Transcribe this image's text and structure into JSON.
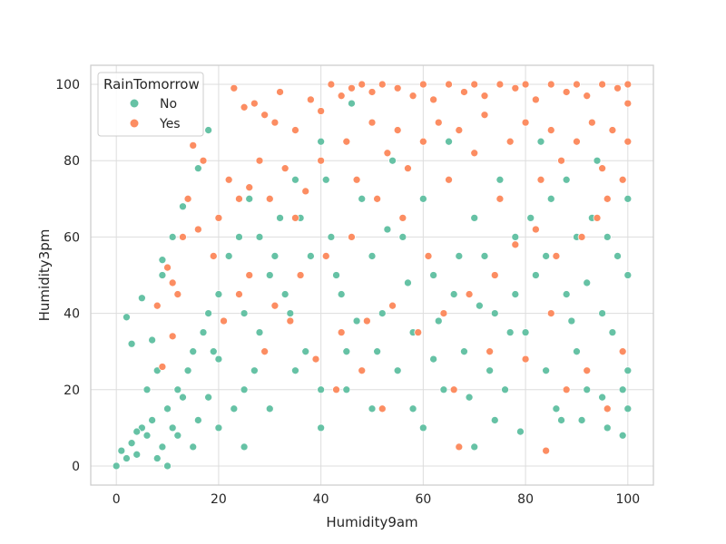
{
  "chart_data": {
    "type": "scatter",
    "xlabel": "Humidity9am",
    "ylabel": "Humidity3pm",
    "xlim": [
      -5,
      105
    ],
    "ylim": [
      -5,
      105
    ],
    "x_ticks": [
      0,
      20,
      40,
      60,
      80,
      100
    ],
    "y_ticks": [
      0,
      20,
      40,
      60,
      80,
      100
    ],
    "grid": true,
    "legend": {
      "title": "RainTomorrow",
      "placement": "top-left",
      "entries": [
        {
          "label": "No",
          "color": "#66c2a5"
        },
        {
          "label": "Yes",
          "color": "#fc8d62"
        }
      ]
    },
    "series": [
      {
        "name": "No",
        "color": "#66c2a5",
        "points": [
          [
            0,
            0
          ],
          [
            1,
            4
          ],
          [
            2,
            2
          ],
          [
            3,
            6
          ],
          [
            4,
            3
          ],
          [
            5,
            10
          ],
          [
            6,
            8
          ],
          [
            7,
            12
          ],
          [
            8,
            2
          ],
          [
            9,
            5
          ],
          [
            10,
            15
          ],
          [
            10,
            0
          ],
          [
            12,
            20
          ],
          [
            12,
            8
          ],
          [
            14,
            25
          ],
          [
            15,
            5
          ],
          [
            15,
            30
          ],
          [
            16,
            12
          ],
          [
            17,
            35
          ],
          [
            18,
            40
          ],
          [
            18,
            18
          ],
          [
            20,
            45
          ],
          [
            20,
            10
          ],
          [
            20,
            28
          ],
          [
            22,
            55
          ],
          [
            24,
            60
          ],
          [
            25,
            20
          ],
          [
            25,
            5
          ],
          [
            26,
            70
          ],
          [
            28,
            35
          ],
          [
            30,
            50
          ],
          [
            30,
            15
          ],
          [
            32,
            65
          ],
          [
            34,
            40
          ],
          [
            35,
            25
          ],
          [
            35,
            75
          ],
          [
            38,
            55
          ],
          [
            40,
            85
          ],
          [
            40,
            20
          ],
          [
            40,
            10
          ],
          [
            42,
            60
          ],
          [
            44,
            45
          ],
          [
            45,
            30
          ],
          [
            46,
            95
          ],
          [
            48,
            70
          ],
          [
            50,
            55
          ],
          [
            50,
            15
          ],
          [
            52,
            40
          ],
          [
            54,
            80
          ],
          [
            55,
            25
          ],
          [
            56,
            60
          ],
          [
            58,
            35
          ],
          [
            60,
            70
          ],
          [
            60,
            10
          ],
          [
            62,
            50
          ],
          [
            64,
            20
          ],
          [
            65,
            85
          ],
          [
            66,
            45
          ],
          [
            68,
            30
          ],
          [
            70,
            65
          ],
          [
            70,
            5
          ],
          [
            72,
            55
          ],
          [
            74,
            40
          ],
          [
            75,
            75
          ],
          [
            76,
            20
          ],
          [
            78,
            60
          ],
          [
            80,
            35
          ],
          [
            80,
            90
          ],
          [
            82,
            50
          ],
          [
            84,
            25
          ],
          [
            85,
            70
          ],
          [
            86,
            15
          ],
          [
            88,
            45
          ],
          [
            90,
            60
          ],
          [
            90,
            30
          ],
          [
            92,
            20
          ],
          [
            94,
            80
          ],
          [
            95,
            40
          ],
          [
            96,
            10
          ],
          [
            98,
            55
          ],
          [
            100,
            25
          ],
          [
            100,
            50
          ],
          [
            100,
            70
          ],
          [
            100,
            15
          ],
          [
            99,
            8
          ],
          [
            97,
            35
          ],
          [
            93,
            65
          ],
          [
            88,
            75
          ],
          [
            83,
            85
          ],
          [
            78,
            45
          ],
          [
            73,
            25
          ],
          [
            67,
            55
          ],
          [
            63,
            38
          ],
          [
            57,
            48
          ],
          [
            53,
            62
          ],
          [
            47,
            38
          ],
          [
            43,
            50
          ],
          [
            37,
            30
          ],
          [
            33,
            45
          ],
          [
            27,
            25
          ],
          [
            23,
            15
          ],
          [
            19,
            30
          ],
          [
            13,
            18
          ],
          [
            11,
            10
          ],
          [
            8,
            25
          ],
          [
            6,
            20
          ],
          [
            4,
            9
          ],
          [
            3,
            32
          ],
          [
            2,
            39
          ],
          [
            5,
            44
          ],
          [
            9,
            50
          ],
          [
            11,
            60
          ],
          [
            13,
            68
          ],
          [
            16,
            78
          ],
          [
            18,
            88
          ],
          [
            9,
            54
          ],
          [
            7,
            33
          ],
          [
            25,
            40
          ],
          [
            28,
            60
          ],
          [
            31,
            55
          ],
          [
            36,
            65
          ],
          [
            41,
            75
          ],
          [
            45,
            20
          ],
          [
            51,
            30
          ],
          [
            58,
            15
          ],
          [
            62,
            28
          ],
          [
            69,
            18
          ],
          [
            74,
            12
          ],
          [
            79,
            9
          ],
          [
            87,
            12
          ],
          [
            91,
            12
          ],
          [
            95,
            18
          ],
          [
            99,
            20
          ],
          [
            96,
            60
          ],
          [
            92,
            48
          ],
          [
            89,
            38
          ],
          [
            84,
            55
          ],
          [
            81,
            65
          ],
          [
            77,
            35
          ],
          [
            71,
            42
          ]
        ]
      },
      {
        "name": "Yes",
        "color": "#fc8d62",
        "points": [
          [
            23,
            99
          ],
          [
            25,
            94
          ],
          [
            27,
            95
          ],
          [
            29,
            92
          ],
          [
            32,
            98
          ],
          [
            31,
            90
          ],
          [
            35,
            88
          ],
          [
            38,
            96
          ],
          [
            40,
            93
          ],
          [
            42,
            100
          ],
          [
            44,
            97
          ],
          [
            46,
            99
          ],
          [
            48,
            100
          ],
          [
            50,
            98
          ],
          [
            52,
            100
          ],
          [
            55,
            99
          ],
          [
            58,
            97
          ],
          [
            60,
            100
          ],
          [
            62,
            96
          ],
          [
            65,
            100
          ],
          [
            68,
            98
          ],
          [
            70,
            100
          ],
          [
            72,
            97
          ],
          [
            75,
            100
          ],
          [
            78,
            99
          ],
          [
            80,
            100
          ],
          [
            82,
            96
          ],
          [
            85,
            100
          ],
          [
            88,
            98
          ],
          [
            90,
            100
          ],
          [
            92,
            97
          ],
          [
            95,
            100
          ],
          [
            98,
            99
          ],
          [
            100,
            100
          ],
          [
            15,
            84
          ],
          [
            17,
            80
          ],
          [
            14,
            70
          ],
          [
            13,
            60
          ],
          [
            10,
            52
          ],
          [
            12,
            45
          ],
          [
            20,
            65
          ],
          [
            22,
            75
          ],
          [
            24,
            70
          ],
          [
            26,
            73
          ],
          [
            28,
            80
          ],
          [
            30,
            70
          ],
          [
            33,
            78
          ],
          [
            35,
            65
          ],
          [
            37,
            72
          ],
          [
            40,
            80
          ],
          [
            45,
            85
          ],
          [
            47,
            75
          ],
          [
            50,
            90
          ],
          [
            53,
            82
          ],
          [
            55,
            88
          ],
          [
            57,
            78
          ],
          [
            60,
            85
          ],
          [
            63,
            90
          ],
          [
            65,
            75
          ],
          [
            67,
            88
          ],
          [
            70,
            82
          ],
          [
            72,
            92
          ],
          [
            75,
            70
          ],
          [
            77,
            85
          ],
          [
            80,
            90
          ],
          [
            83,
            75
          ],
          [
            85,
            88
          ],
          [
            87,
            80
          ],
          [
            90,
            85
          ],
          [
            93,
            90
          ],
          [
            95,
            78
          ],
          [
            97,
            88
          ],
          [
            100,
            85
          ],
          [
            100,
            95
          ],
          [
            99,
            75
          ],
          [
            96,
            70
          ],
          [
            94,
            65
          ],
          [
            91,
            60
          ],
          [
            86,
            55
          ],
          [
            82,
            62
          ],
          [
            78,
            58
          ],
          [
            74,
            50
          ],
          [
            69,
            45
          ],
          [
            64,
            40
          ],
          [
            59,
            35
          ],
          [
            54,
            42
          ],
          [
            49,
            38
          ],
          [
            44,
            35
          ],
          [
            39,
            28
          ],
          [
            34,
            38
          ],
          [
            29,
            30
          ],
          [
            24,
            45
          ],
          [
            19,
            55
          ],
          [
            16,
            62
          ],
          [
            11,
            48
          ],
          [
            8,
            42
          ],
          [
            11,
            34
          ],
          [
            9,
            26
          ],
          [
            67,
            5
          ],
          [
            84,
            4
          ],
          [
            88,
            20
          ],
          [
            92,
            25
          ],
          [
            96,
            15
          ],
          [
            99,
            30
          ],
          [
            85,
            40
          ],
          [
            80,
            28
          ],
          [
            73,
            30
          ],
          [
            66,
            20
          ],
          [
            61,
            55
          ],
          [
            56,
            65
          ],
          [
            51,
            70
          ],
          [
            46,
            60
          ],
          [
            41,
            55
          ],
          [
            36,
            50
          ],
          [
            31,
            42
          ],
          [
            26,
            50
          ],
          [
            21,
            38
          ],
          [
            43,
            20
          ],
          [
            48,
            25
          ],
          [
            52,
            15
          ]
        ]
      }
    ]
  }
}
